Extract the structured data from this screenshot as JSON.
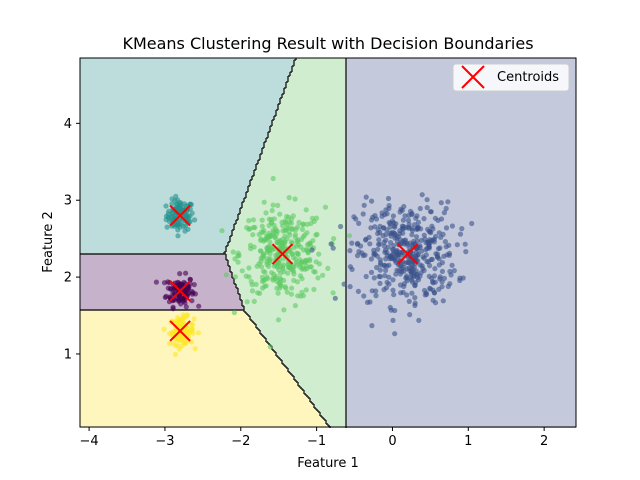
{
  "chart_data": {
    "type": "scatter",
    "title": "KMeans Clustering Result with Decision Boundaries",
    "xlabel": "Feature 1",
    "ylabel": "Feature 2",
    "xlim": [
      -4.12,
      2.42
    ],
    "ylim": [
      0.05,
      4.85
    ],
    "xticks": [
      {
        "value": -4,
        "label": "−4"
      },
      {
        "value": -3,
        "label": "−3"
      },
      {
        "value": -2,
        "label": "−2"
      },
      {
        "value": -1,
        "label": "−1"
      },
      {
        "value": 0,
        "label": "0"
      },
      {
        "value": 1,
        "label": "1"
      },
      {
        "value": 2,
        "label": "2"
      }
    ],
    "yticks": [
      {
        "value": 1,
        "label": "1"
      },
      {
        "value": 2,
        "label": "2"
      },
      {
        "value": 3,
        "label": "3"
      },
      {
        "value": 4,
        "label": "4"
      }
    ],
    "grid": false,
    "legend": {
      "position": "top-right",
      "entries": [
        "Centroids"
      ]
    },
    "clusters": [
      {
        "color": "#21918c",
        "region_color": "#bddcdc",
        "center": [
          -2.8,
          2.8
        ],
        "spread": [
          0.09,
          0.1
        ],
        "count": 110
      },
      {
        "color": "#440154",
        "region_color": "#c7b2cc",
        "center": [
          -2.8,
          1.82
        ],
        "spread": [
          0.09,
          0.1
        ],
        "count": 110
      },
      {
        "color": "#fde725",
        "region_color": "#fef6bc",
        "center": [
          -2.78,
          1.3
        ],
        "spread": [
          0.08,
          0.09
        ],
        "count": 110
      },
      {
        "color": "#5ec962",
        "region_color": "#d0edcf",
        "center": [
          -1.45,
          2.3
        ],
        "spread": [
          0.28,
          0.3
        ],
        "count": 330
      },
      {
        "color": "#3b528b",
        "region_color": "#c4cadc",
        "center": [
          0.18,
          2.3
        ],
        "spread": [
          0.33,
          0.33
        ],
        "count": 420
      }
    ],
    "centroids": {
      "color": "#ff0000",
      "points": [
        [
          -2.8,
          2.8
        ],
        [
          -2.8,
          1.82
        ],
        [
          -2.8,
          1.3
        ],
        [
          -1.45,
          2.3
        ],
        [
          0.2,
          2.3
        ]
      ]
    }
  }
}
